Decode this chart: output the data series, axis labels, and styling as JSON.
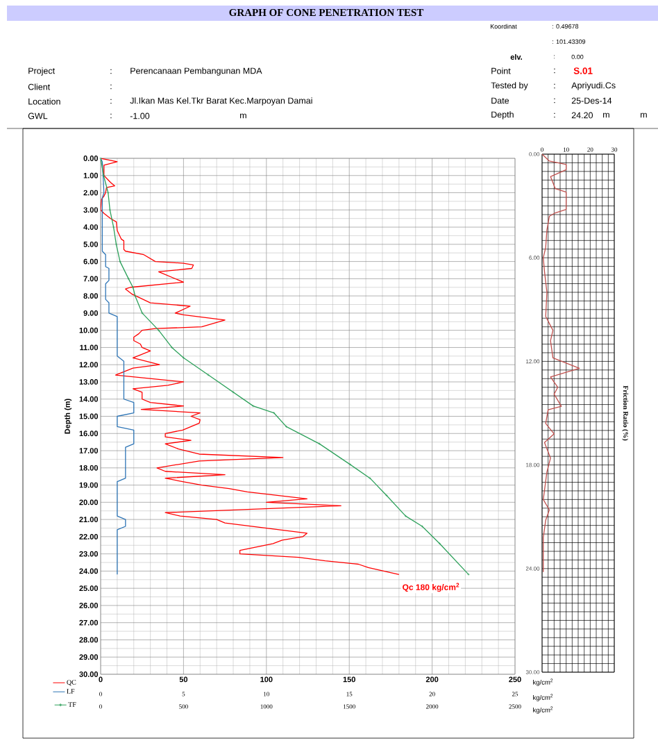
{
  "chart_data": [
    {
      "type": "line",
      "title": "GRAPH OF CONE PENETRATION TEST",
      "ylabel": "Depth (m)",
      "xlabel": "kg/cm$^{2}$",
      "x2label": "kg/cm$^{2}$",
      "xlim": [
        0,
        250
      ],
      "xticks": [
        0,
        50,
        100,
        150,
        200,
        250
      ],
      "x2lim": [
        0,
        25
      ],
      "x2ticks": [
        0,
        5,
        10,
        15,
        20,
        25
      ],
      "ylim": [
        30,
        0
      ],
      "yticks": [
        {
          "value": 0,
          "label": "0.00"
        },
        {
          "value": 1,
          "label": "1.00"
        },
        {
          "value": 2,
          "label": "2.00"
        },
        {
          "value": 3,
          "label": "3.00"
        },
        {
          "value": 4,
          "label": "4.00"
        },
        {
          "value": 5,
          "label": "5.00"
        },
        {
          "value": 6,
          "label": "6.00"
        },
        {
          "value": 7,
          "label": "7.00"
        },
        {
          "value": 8,
          "label": "8.00"
        },
        {
          "value": 9,
          "label": "9.00"
        },
        {
          "value": 10,
          "label": "10.00"
        },
        {
          "value": 11,
          "label": "11.00"
        },
        {
          "value": 12,
          "label": "12.00"
        },
        {
          "value": 13,
          "label": "13.00"
        },
        {
          "value": 14,
          "label": "14.00"
        },
        {
          "value": 15,
          "label": "15.00"
        },
        {
          "value": 16,
          "label": "16.00"
        },
        {
          "value": 17,
          "label": "17.00"
        },
        {
          "value": 18,
          "label": "18.00"
        },
        {
          "value": 19,
          "label": "19.00"
        },
        {
          "value": 20,
          "label": "20.00"
        },
        {
          "value": 21,
          "label": "21.00"
        },
        {
          "value": 22,
          "label": "22.00"
        },
        {
          "value": 23,
          "label": "23.00"
        },
        {
          "value": 24,
          "label": "24.00"
        },
        {
          "value": 25,
          "label": "25.00"
        },
        {
          "value": 26,
          "label": "26.00"
        },
        {
          "value": 27,
          "label": "27.00"
        },
        {
          "value": 28,
          "label": "28.00"
        },
        {
          "value": 29,
          "label": "29.00"
        },
        {
          "value": 30,
          "label": "30.00"
        }
      ],
      "grid": true,
      "legend": "bottom left",
      "annotations": [
        "Koordinat",
        ": 0.49678",
        ": 101.43309",
        "elv.",
        ":",
        "0.00",
        "Project",
        ":",
        "Perencanaan Pembangunan MDA",
        "Client",
        ":",
        "Location",
        ":",
        "Jl.Ikan Mas Kel.Tkr Barat Kec.Marpoyan Damai",
        "GWL",
        ":",
        "-1.00",
        "m",
        "Point",
        ":",
        "S.01",
        "Tested by",
        ":",
        "Apriyudi.Cs",
        "Date",
        ":",
        "25-Des-14",
        "Depth",
        ":",
        "24.20",
        "m",
        "m",
        {
          "text": "Qc 180 kg/cm$^{2}$",
          "x": 180,
          "y": 24.2
        }
      ],
      "series": [
        {
          "name": "QC",
          "color": "#ff0000",
          "x": [
            0,
            10,
            2,
            2,
            6,
            8.5,
            3.5,
            3,
            2,
            0.5,
            0,
            2,
            6,
            9.5,
            10,
            11,
            12.5,
            14,
            14,
            15,
            26,
            33,
            50,
            56,
            55,
            35,
            50,
            18,
            15,
            19,
            30,
            54,
            45,
            50,
            75,
            61,
            33,
            25,
            23,
            20,
            20,
            22,
            24,
            25,
            30,
            19.5,
            35.5,
            19.5,
            9,
            50,
            40.5,
            19.5,
            25,
            25,
            30,
            50,
            24.5,
            60,
            54.5,
            60,
            59.5,
            49.5,
            39,
            39,
            54.5,
            39,
            47,
            59.5,
            110,
            59.5,
            34,
            39,
            75,
            39,
            49.5,
            61,
            77.5,
            88.5,
            124.5,
            100,
            145,
            39,
            48,
            70,
            75,
            124.5,
            122,
            109.5,
            104,
            84,
            84,
            119.5,
            135.5,
            155.5,
            161.5,
            180
          ],
          "values": [
            0,
            0.2,
            0.4,
            1.0,
            1.4,
            1.6,
            1.7,
            2.0,
            2.2,
            2.4,
            3.0,
            3.2,
            3.5,
            3.7,
            4.2,
            4.4,
            4.7,
            4.8,
            5.3,
            5.4,
            5.6,
            6.0,
            6.1,
            6.2,
            6.4,
            6.6,
            7.2,
            7.5,
            7.6,
            7.9,
            8.4,
            8.6,
            9.0,
            9.1,
            9.4,
            9.8,
            9.9,
            10.0,
            10.2,
            10.4,
            10.6,
            10.7,
            10.8,
            11.0,
            11.2,
            11.6,
            12.0,
            12.2,
            12.6,
            13.0,
            13.2,
            13.4,
            13.6,
            14.0,
            14.2,
            14.4,
            14.6,
            14.8,
            15.0,
            15.2,
            15.4,
            15.8,
            16.0,
            16.2,
            16.4,
            16.6,
            16.9,
            17.2,
            17.4,
            17.6,
            18.0,
            18.2,
            18.4,
            18.6,
            18.8,
            19.0,
            19.2,
            19.4,
            19.8,
            20.0,
            20.2,
            20.6,
            20.8,
            21.0,
            21.2,
            21.8,
            22.0,
            22.2,
            22.4,
            22.8,
            23.0,
            23.2,
            23.4,
            23.6,
            23.8,
            24.2
          ]
        },
        {
          "name": "LF",
          "color": "#2e75b6",
          "axis": "x2",
          "x": [
            0,
            0.1,
            0.2,
            0.1,
            0.1,
            0.3,
            0.3,
            0.5,
            0.5,
            0.3,
            0.3,
            0.5,
            0.5,
            1,
            1,
            1.4,
            1.4,
            2,
            2,
            1,
            1,
            2,
            2,
            1.5,
            1.5,
            1,
            1,
            1.5,
            1.5,
            1,
            1
          ],
          "values": [
            0,
            0.2,
            2.0,
            2.3,
            5.4,
            5.6,
            6.3,
            6.4,
            7.1,
            7.3,
            8.2,
            8.4,
            9.0,
            9.2,
            11.5,
            11.8,
            14.0,
            14.2,
            14.8,
            15.0,
            15.6,
            15.8,
            16.6,
            16.8,
            18.6,
            18.8,
            20.8,
            21.0,
            21.4,
            21.6,
            24.2
          ]
        }
      ]
    },
    {
      "type": "line",
      "annotations": [
        "Friction Ratio (%)"
      ],
      "xlim": [
        0,
        30
      ],
      "xticks": [
        0,
        10,
        20,
        30
      ],
      "ylim": [
        30,
        0
      ],
      "yticks": [
        {
          "value": 0,
          "label": "0.00"
        },
        {
          "value": 6,
          "label": "6.00"
        },
        {
          "value": 12,
          "label": "12.00"
        },
        {
          "value": 18,
          "label": "18.00"
        },
        {
          "value": 24,
          "label": "24.00"
        },
        {
          "value": 30,
          "label": "30.00"
        }
      ],
      "grid": true,
      "series": [
        {
          "color": "#c0504d",
          "x": [
            0,
            3,
            10,
            10,
            3.5,
            5.5,
            10,
            10,
            5.5,
            3,
            2,
            1.5,
            0.5,
            1,
            2,
            1.5,
            4.5,
            3.5,
            4.5,
            15.5,
            3.5,
            6.5,
            5,
            8,
            2.5,
            1.5,
            5,
            1,
            3.5,
            2,
            0.5,
            3,
            1.5,
            0.5,
            0.5
          ],
          "values": [
            0,
            0.4,
            0.6,
            0.9,
            1.3,
            2.0,
            2.2,
            3.2,
            3.4,
            3.6,
            4.4,
            5.4,
            6.0,
            6.8,
            8.0,
            9.4,
            10.2,
            10.8,
            11.8,
            12.4,
            12.9,
            13.5,
            13.9,
            14.6,
            14.8,
            15.6,
            16.2,
            16.7,
            17.6,
            18.4,
            20.0,
            20.6,
            21.2,
            22.2,
            24.2
          ]
        }
      ]
    },
    {
      "type": "line",
      "xlabel": "kg/cm$^{2}$",
      "xlim": [
        0,
        2500
      ],
      "xticks": [
        0,
        500,
        1000,
        1500,
        2000,
        2500
      ],
      "ylim": [
        30,
        0
      ],
      "tick_labels": "x",
      "legend": "bottom left",
      "series": [
        {
          "name": "TF",
          "color": "#2ca05a",
          "marker": "cross",
          "x": [
            0,
            18,
            45,
            56,
            78,
            94,
            117,
            168,
            195,
            208,
            251,
            350,
            430,
            500,
            650,
            800,
            920,
            1045,
            1120,
            1320,
            1505,
            1625,
            1725,
            1840,
            1940,
            2045,
            2220
          ],
          "values": [
            0,
            1,
            2,
            3,
            4,
            5,
            6,
            7,
            7.5,
            8,
            9,
            10,
            11,
            11.6,
            12.6,
            13.6,
            14.4,
            14.8,
            15.6,
            16.6,
            17.8,
            18.6,
            19.6,
            20.8,
            21.4,
            22.4,
            24.2
          ]
        }
      ]
    }
  ]
}
